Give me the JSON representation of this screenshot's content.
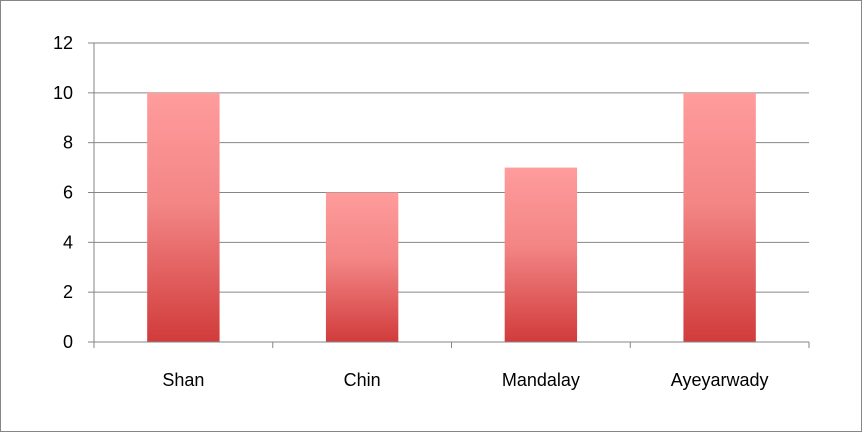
{
  "chart_data": {
    "type": "bar",
    "categories": [
      "Shan",
      "Chin",
      "Mandalay",
      "Ayeyarwady"
    ],
    "values": [
      10,
      6,
      7,
      10
    ],
    "ylim": [
      0,
      12
    ],
    "yticks": [
      0,
      2,
      4,
      6,
      8,
      10,
      12
    ],
    "grid": true,
    "legend": "none",
    "colors": {
      "bar_top": "#ff9c9c",
      "bar_bottom": "#d13b3b",
      "gridline": "#868686",
      "axis": "#868686"
    }
  }
}
